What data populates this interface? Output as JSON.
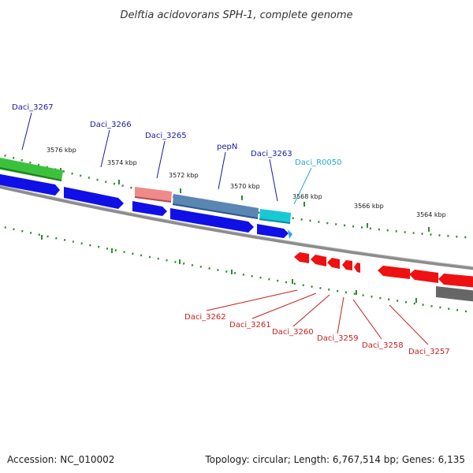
{
  "title": "Delftia acidovorans SPH-1, complete genome",
  "footer": {
    "accession": "Accession: NC_010002",
    "topology": "Topology: circular; Length: 6,767,514 bp; Genes: 6,135"
  },
  "colors": {
    "background": "#ffffff",
    "backbone": "#8c8c8c",
    "tick": "#2e8b2e",
    "cds_forward": "#1010e6",
    "cds_reverse": "#ee1111",
    "gene_green": "#3cc13c",
    "gene_pink": "#ef8a8a",
    "gene_steel": "#5a86b4",
    "gene_cyan": "#18c8d4",
    "gene_gray": "#666666",
    "label_forward": "#1a1aa8",
    "label_reverse": "#c81e1e",
    "label_rna": "#22aacc"
  },
  "ticks": [
    "3576 kbp",
    "3574 kbp",
    "3572 kbp",
    "3570 kbp",
    "3568 kbp",
    "3566 kbp",
    "3564 kbp"
  ],
  "gene_labels_top": [
    {
      "id": "daci_3267",
      "text": "Daci_3267",
      "kind": "forward"
    },
    {
      "id": "daci_3266",
      "text": "Daci_3266",
      "kind": "forward"
    },
    {
      "id": "daci_3265",
      "text": "Daci_3265",
      "kind": "forward"
    },
    {
      "id": "pepn",
      "text": "pepN",
      "kind": "forward"
    },
    {
      "id": "daci_3263",
      "text": "Daci_3263",
      "kind": "forward"
    },
    {
      "id": "daci_r0050",
      "text": "Daci_R0050",
      "kind": "rna"
    }
  ],
  "gene_labels_bottom": [
    {
      "id": "daci_3262",
      "text": "Daci_3262",
      "kind": "reverse"
    },
    {
      "id": "daci_3261",
      "text": "Daci_3261",
      "kind": "reverse"
    },
    {
      "id": "daci_3260",
      "text": "Daci_3260",
      "kind": "reverse"
    },
    {
      "id": "daci_3259",
      "text": "Daci_3259",
      "kind": "reverse"
    },
    {
      "id": "daci_3258",
      "text": "Daci_3258",
      "kind": "reverse"
    },
    {
      "id": "daci_3257",
      "text": "Daci_3257",
      "kind": "reverse"
    }
  ]
}
